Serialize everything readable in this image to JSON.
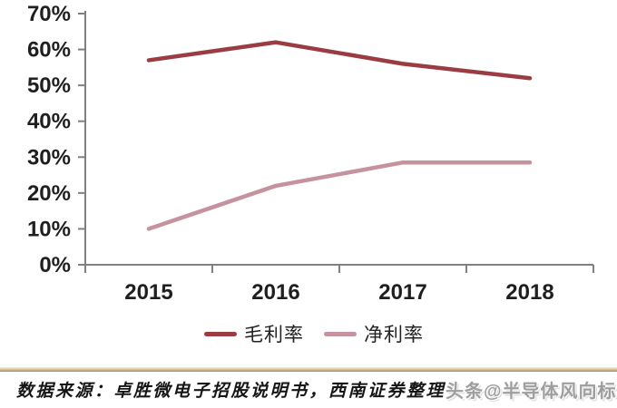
{
  "chart_data": {
    "type": "line",
    "categories": [
      "2015",
      "2016",
      "2017",
      "2018"
    ],
    "series": [
      {
        "name": "毛利率",
        "key": "gross-margin",
        "color": "#9b3c42",
        "values": [
          57,
          62,
          56,
          52
        ]
      },
      {
        "name": "净利率",
        "key": "net-margin",
        "color": "#c5929d",
        "values": [
          10,
          22,
          28.5,
          28.5
        ]
      }
    ],
    "ylim": [
      0,
      70
    ],
    "ytick_step": 10,
    "yticks": [
      "0%",
      "10%",
      "20%",
      "30%",
      "40%",
      "50%",
      "60%",
      "70%"
    ],
    "xlabel": "",
    "ylabel": "",
    "grid": false,
    "legend_position": "bottom"
  },
  "footer": {
    "source": "数据来源：卓胜微电子招股说明书，西南证券整理",
    "watermark": "头条@半导体风向标"
  },
  "colors": {
    "axis": "#808080",
    "tick_label": "#1f1f1f",
    "divider_top": "#f3ecd6",
    "divider_bottom": "#a08d58",
    "watermark": "#9e9e9e"
  }
}
